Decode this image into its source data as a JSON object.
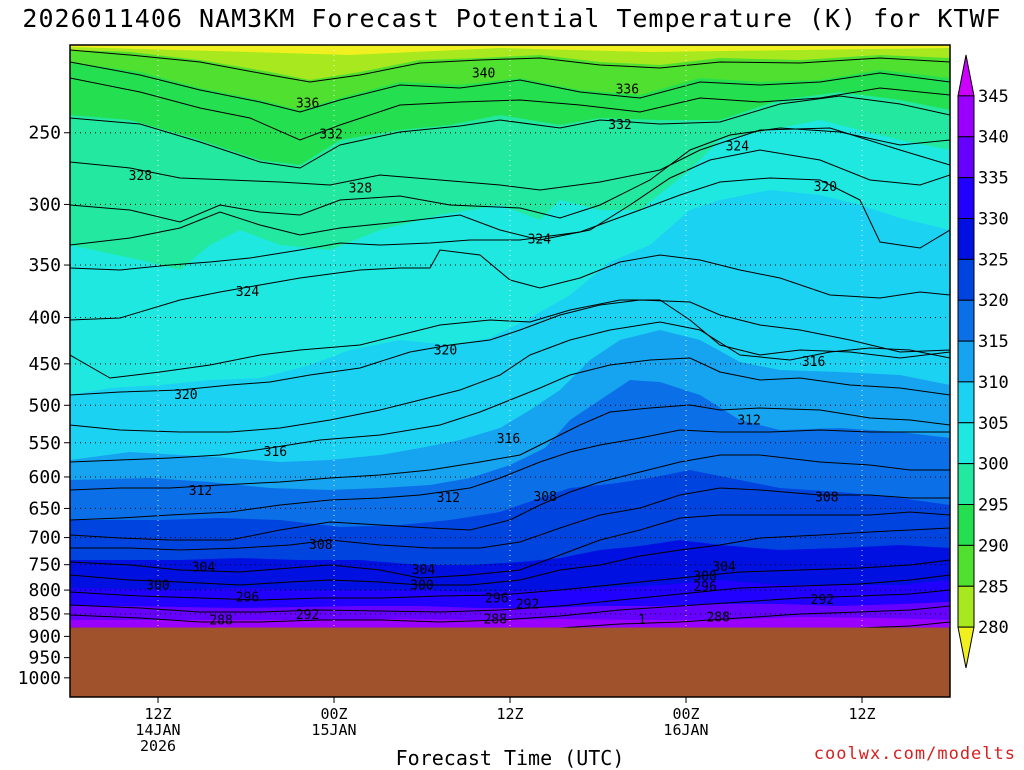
{
  "title": "2026011406 NAM3KM Forecast Potential Temperature (K) for KTWF",
  "credit": "coolwx.com/modelts",
  "chart_data": {
    "type": "contour",
    "title": "2026011406 NAM3KM Forecast Potential Temperature (K) for KTWF",
    "xlabel": "Forecast Time (UTC)",
    "ylabel": "",
    "x_ticks": [
      {
        "label": [
          "12Z",
          "14JAN",
          "2026"
        ],
        "hour": 6
      },
      {
        "label": [
          "00Z",
          "15JAN"
        ],
        "hour": 18
      },
      {
        "label": [
          "12Z"
        ],
        "hour": 30
      },
      {
        "label": [
          "00Z",
          "16JAN"
        ],
        "hour": 42
      },
      {
        "label": [
          "12Z"
        ],
        "hour": 54
      }
    ],
    "x_range_hours": [
      0,
      60
    ],
    "y_scale": "log",
    "y_range": [
      1050,
      200
    ],
    "y_ticks": [
      250,
      300,
      350,
      400,
      450,
      500,
      550,
      600,
      650,
      700,
      750,
      800,
      850,
      900,
      950,
      1000
    ],
    "ground_level_hPa": 880,
    "colorbar": {
      "levels": [
        280,
        285,
        290,
        295,
        300,
        305,
        310,
        315,
        320,
        325,
        330,
        335,
        340,
        345
      ],
      "colors": [
        "#cc00ff",
        "#9a00ff",
        "#6600ff",
        "#2200ff",
        "#0010e0",
        "#0044e0",
        "#0b70e8",
        "#16a4f0",
        "#1cd2f2",
        "#1fe8e0",
        "#22e8a0",
        "#24e050",
        "#50e030",
        "#a8e81e",
        "#f0f020"
      ]
    },
    "contour_labels": [
      {
        "text": "340",
        "hour": 28.2,
        "hPa": 215
      },
      {
        "text": "336",
        "hour": 16.2,
        "hPa": 232
      },
      {
        "text": "336",
        "hour": 38.0,
        "hPa": 224
      },
      {
        "text": "332",
        "hour": 17.8,
        "hPa": 251
      },
      {
        "text": "332",
        "hour": 37.5,
        "hPa": 245
      },
      {
        "text": "328",
        "hour": 4.8,
        "hPa": 279
      },
      {
        "text": "328",
        "hour": 19.8,
        "hPa": 288
      },
      {
        "text": "324",
        "hour": 45.5,
        "hPa": 259
      },
      {
        "text": "320",
        "hour": 51.5,
        "hPa": 287
      },
      {
        "text": "324",
        "hour": 32.0,
        "hPa": 328
      },
      {
        "text": "324",
        "hour": 12.1,
        "hPa": 375
      },
      {
        "text": "320",
        "hour": 25.6,
        "hPa": 435
      },
      {
        "text": "320",
        "hour": 7.9,
        "hPa": 487
      },
      {
        "text": "316",
        "hour": 50.7,
        "hPa": 448
      },
      {
        "text": "312",
        "hour": 46.3,
        "hPa": 520
      },
      {
        "text": "316",
        "hour": 29.9,
        "hPa": 545
      },
      {
        "text": "316",
        "hour": 14.0,
        "hPa": 563
      },
      {
        "text": "312",
        "hour": 8.9,
        "hPa": 622
      },
      {
        "text": "312",
        "hour": 25.8,
        "hPa": 633
      },
      {
        "text": "308",
        "hour": 32.4,
        "hPa": 631
      },
      {
        "text": "308",
        "hour": 51.6,
        "hPa": 632
      },
      {
        "text": "308",
        "hour": 17.1,
        "hPa": 713
      },
      {
        "text": "304",
        "hour": 9.1,
        "hPa": 755
      },
      {
        "text": "304",
        "hour": 24.1,
        "hPa": 760
      },
      {
        "text": "304",
        "hour": 44.6,
        "hPa": 754
      },
      {
        "text": "300",
        "hour": 6.0,
        "hPa": 791
      },
      {
        "text": "300",
        "hour": 24.0,
        "hPa": 791
      },
      {
        "text": "300",
        "hour": 43.3,
        "hPa": 773
      },
      {
        "text": "296",
        "hour": 12.1,
        "hPa": 815
      },
      {
        "text": "296",
        "hour": 29.1,
        "hPa": 817
      },
      {
        "text": "296",
        "hour": 43.3,
        "hPa": 794
      },
      {
        "text": "292",
        "hour": 31.2,
        "hPa": 830
      },
      {
        "text": "292",
        "hour": 51.3,
        "hPa": 820
      },
      {
        "text": "292",
        "hour": 16.2,
        "hPa": 852
      },
      {
        "text": "288",
        "hour": 10.3,
        "hPa": 864
      },
      {
        "text": "288",
        "hour": 29.0,
        "hPa": 862
      },
      {
        "text": "288",
        "hour": 44.2,
        "hPa": 858
      },
      {
        "text": "1",
        "hour": 39.0,
        "hPa": 863
      }
    ]
  }
}
